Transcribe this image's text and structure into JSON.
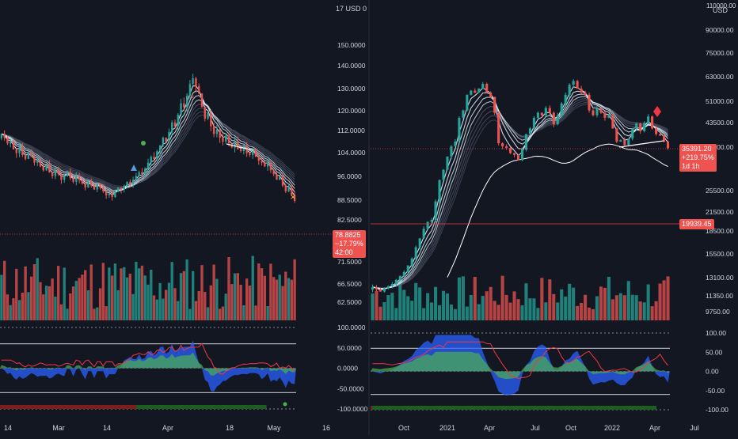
{
  "colors": {
    "background": "#131722",
    "up": "#26a69a",
    "down": "#ef5350",
    "text": "#d1d4dc",
    "ribbon_light": "#e3f2fd",
    "ribbon_dark": "#5b6478",
    "osc_blue": "#2962ff",
    "osc_green": "#4caf50",
    "osc_orange": "#ffb74d",
    "osc_red": "#f23645",
    "price_line": "#f23645"
  },
  "left_panel": {
    "currency_label": "17 USD 0",
    "last_price": "78.8825",
    "change_pct": "−17.79%",
    "countdown": "42:00"
  },
  "right_panel": {
    "currency_label": "USD",
    "currency_top": "110000.00",
    "last_price": "35391.20",
    "change_pct": "+219.75%",
    "countdown": "1d 1h",
    "ref_price": "19939.45"
  },
  "chart_data": [
    {
      "type": "candlestick",
      "name": "left",
      "x_ticks": [
        "14",
        "Mar",
        "14",
        "Apr",
        "18",
        "May",
        "16"
      ],
      "y_ticks": [
        "150.0000",
        "140.0000",
        "130.0000",
        "120.0000",
        "112.0000",
        "104.0000",
        "96.0000",
        "88.5000",
        "82.5000",
        "71.5000",
        "66.5000",
        "62.5000"
      ],
      "osc_ticks": [
        "100.0000",
        "50.0000",
        "0.0000",
        "-50.0000",
        "-100.0000"
      ],
      "close": [
        114,
        112,
        109,
        110,
        106,
        104,
        107,
        103,
        101,
        104,
        102,
        99,
        100,
        97,
        95,
        98,
        94,
        92,
        95,
        93,
        90,
        92,
        94,
        91,
        89,
        92,
        90,
        88,
        86,
        89,
        87,
        85,
        88,
        86,
        84,
        82,
        83,
        81,
        84,
        86,
        85,
        87,
        89,
        88,
        90,
        92,
        94,
        93,
        96,
        99,
        102,
        101,
        105,
        108,
        112,
        110,
        115,
        120,
        118,
        124,
        130,
        128,
        134,
        140,
        143,
        139,
        135,
        128,
        122,
        125,
        118,
        114,
        116,
        112,
        110,
        113,
        109,
        107,
        110,
        106,
        105,
        108,
        104,
        103,
        106,
        102,
        100,
        99,
        97,
        99,
        95,
        93,
        90,
        92,
        87,
        84,
        86,
        82,
        79
      ],
      "ylim": [
        60,
        160
      ]
    },
    {
      "type": "candlestick",
      "name": "right",
      "x_ticks": [
        "Oct",
        "2021",
        "Apr",
        "Jul",
        "Oct",
        "2022",
        "Apr",
        "Jul"
      ],
      "y_ticks": [
        "90000.00",
        "75000.00",
        "63000.00",
        "51000.00",
        "43500.00",
        "37000.00",
        "25500.00",
        "21500.00",
        "18500.00",
        "15500.00",
        "13100.00",
        "11350.00",
        "9750.00"
      ],
      "osc_ticks": [
        "100.00",
        "50.00",
        "0.00",
        "-50.00",
        "-100.00"
      ],
      "close": [
        10800,
        10600,
        10400,
        10700,
        10900,
        11100,
        11500,
        11900,
        12300,
        13000,
        13800,
        15200,
        16400,
        17800,
        18900,
        19200,
        22500,
        27000,
        29500,
        33000,
        36000,
        37500,
        46000,
        49000,
        56000,
        58000,
        57000,
        59000,
        61500,
        57000,
        55000,
        48000,
        37000,
        36000,
        35500,
        34000,
        33500,
        32000,
        35000,
        40000,
        42000,
        46000,
        48000,
        47000,
        50000,
        48000,
        43500,
        47000,
        52000,
        56000,
        61000,
        63000,
        59000,
        57000,
        56000,
        49000,
        47000,
        50000,
        48000,
        46000,
        47000,
        42000,
        37500,
        38000,
        36500,
        38500,
        42000,
        43800,
        41000,
        44000,
        46500,
        42000,
        40000,
        39500,
        37500,
        35391
      ],
      "ylim": [
        9000,
        110000
      ]
    }
  ]
}
